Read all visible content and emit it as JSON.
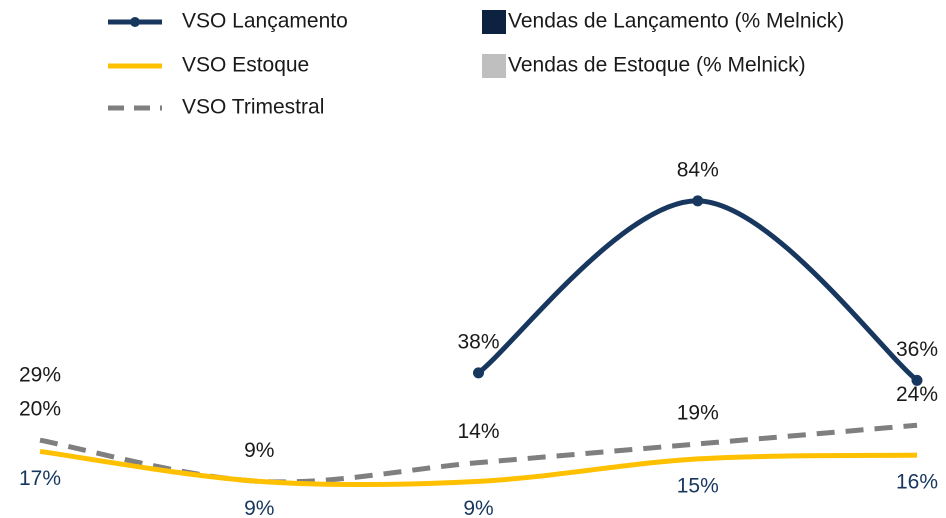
{
  "chart_data": {
    "type": "line",
    "categories": [
      null,
      null,
      null,
      null,
      null
    ],
    "ylim": [
      0,
      100
    ],
    "series": [
      {
        "name": "VSO Lançamento",
        "color": "#17375e",
        "marker": true,
        "values": [
          null,
          null,
          38,
          84,
          36
        ],
        "value_labels": [
          null,
          null,
          "38%",
          "84%",
          "36%"
        ]
      },
      {
        "name": "Vendas de Lançamento (% Melnick)",
        "color": "#0d2240",
        "legend_shape": "square"
      },
      {
        "name": "VSO Estoque",
        "color": "#ffc000",
        "values": [
          17,
          9,
          9,
          15,
          16
        ],
        "value_labels": [
          "17%",
          "9%",
          "9%",
          "15%",
          "16%"
        ],
        "label_color": "#17375e",
        "label_position": "below"
      },
      {
        "name": "Vendas de Estoque (% Melnick)",
        "color": "#bfbfbf",
        "legend_shape": "square"
      },
      {
        "name": "VSO Trimestral",
        "color": "#7f7f7f",
        "dashed": true,
        "values": [
          20,
          9,
          14,
          19,
          24
        ],
        "value_labels": [
          "20%",
          "9%",
          "14%",
          "19%",
          "24%"
        ]
      }
    ],
    "annotations": [
      "29%"
    ]
  }
}
